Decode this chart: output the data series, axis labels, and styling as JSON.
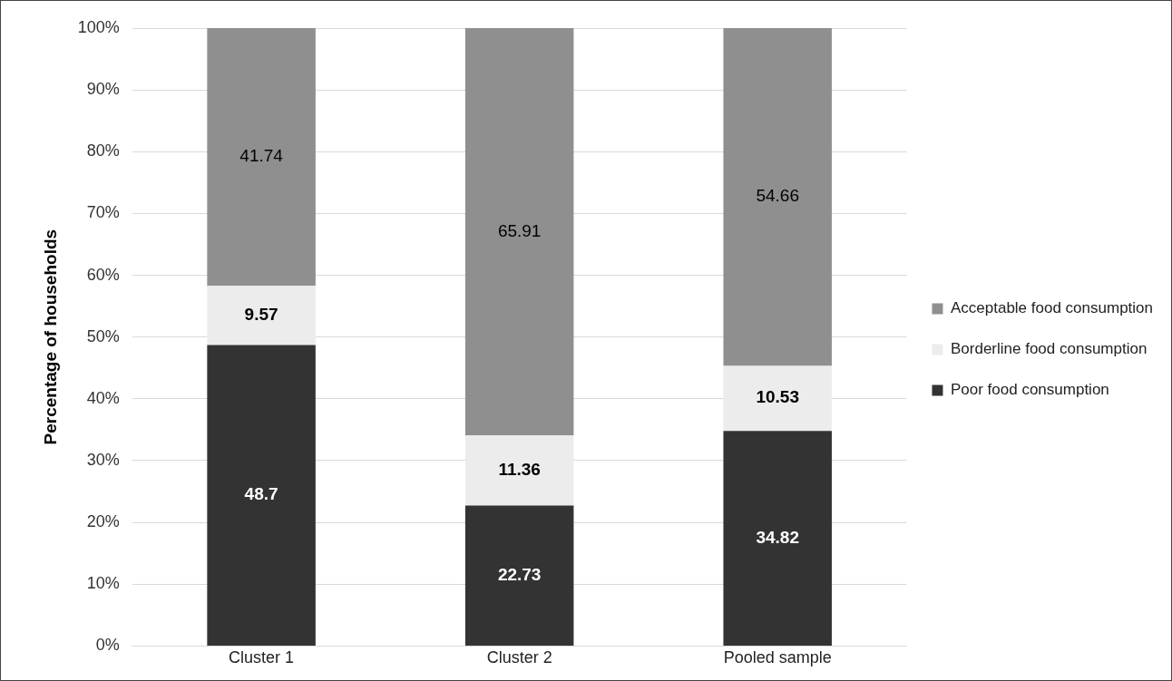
{
  "chart_data": {
    "type": "bar",
    "stacked": true,
    "ylabel": "Percentage of households",
    "categories": [
      "Cluster 1",
      "Cluster 2",
      "Pooled sample"
    ],
    "series": [
      {
        "name": "Poor food consumption",
        "color": "#333333",
        "values": [
          48.7,
          22.73,
          34.82
        ]
      },
      {
        "name": "Borderline food consumption",
        "color": "#ececec",
        "values": [
          9.57,
          11.36,
          10.53
        ]
      },
      {
        "name": "Acceptable food consumption",
        "color": "#8f8f8f",
        "values": [
          41.74,
          65.91,
          54.66
        ]
      }
    ],
    "ylim": [
      0,
      100
    ],
    "yticks": [
      {
        "value": 0,
        "label": "0%"
      },
      {
        "value": 10,
        "label": "10%"
      },
      {
        "value": 20,
        "label": "20%"
      },
      {
        "value": 30,
        "label": "30%"
      },
      {
        "value": 40,
        "label": "40%"
      },
      {
        "value": 50,
        "label": "50%"
      },
      {
        "value": 60,
        "label": "60%"
      },
      {
        "value": 70,
        "label": "70%"
      },
      {
        "value": 80,
        "label": "80%"
      },
      {
        "value": 90,
        "label": "90%"
      },
      {
        "value": 100,
        "label": "100%"
      }
    ],
    "grid": "y",
    "legend": "right",
    "data_labels": true
  }
}
